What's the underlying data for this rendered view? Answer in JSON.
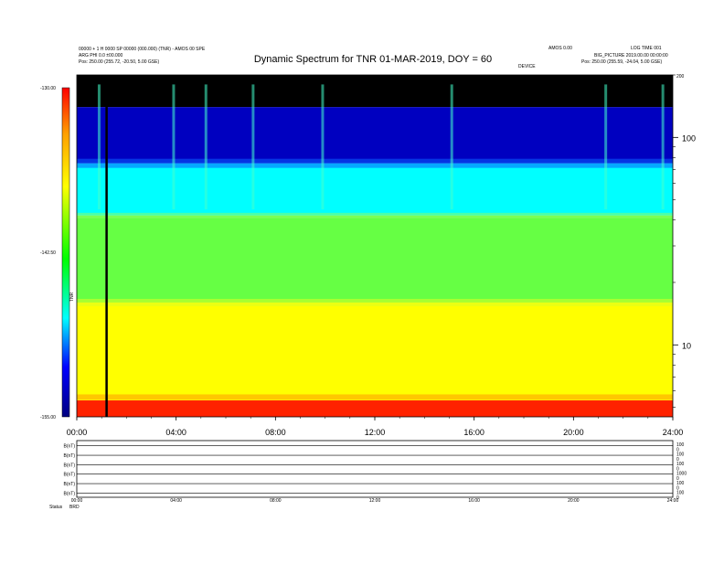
{
  "header": {
    "title": "Dynamic Spectrum for TNR 01-MAR-2019, DOY = 60",
    "left_line1": "00000 + 1 H 0000 SP 00000 (000.000) (TNR) - AMOS 00 SPE",
    "left_line2": "ARG PHI 0.0 ±00.000",
    "left_line3": "Pos:    250.00 (255.72, -20.50, 5.00 GSE)",
    "right_line1": "AMOS 0.00",
    "right_line2": "LOG TIME 001",
    "right_line3": "BIG_PICTURE 2019.00.00 00:00:00",
    "right_line4": "Pos:    250.00 (255.59, -24.04, 5.00 GSE)",
    "center_small": "DEVICE"
  },
  "colors": {
    "background": "#ffffff",
    "black_band": "#000000",
    "dark_blue": "#0000b0",
    "blue": "#0033ff",
    "cyan": "#00ffff",
    "green": "#44ff44",
    "yellow": "#ffff00",
    "red": "#ff0000"
  },
  "chart_data": [
    {
      "type": "heatmap",
      "title": "Dynamic Spectrum for TNR 01-MAR-2019, DOY = 60",
      "x_tick_labels": [
        "00:00",
        "04:00",
        "08:00",
        "12:00",
        "16:00",
        "20:00",
        "24:00"
      ],
      "x_ticks_hours": [
        0,
        4,
        8,
        12,
        16,
        20,
        24
      ],
      "xlim_hours": [
        0,
        24
      ],
      "y_scale": "log",
      "y_tick_labels": [
        "10",
        "100"
      ],
      "y_ticks": [
        10,
        100
      ],
      "y_top_label": "200",
      "ylim": [
        4.5,
        200
      ],
      "colorbar": {
        "label": "TNR",
        "tick_labels": [
          "-130.00",
          "-142.50",
          "-155.00"
        ],
        "range": [
          -155,
          -130
        ],
        "colormap": [
          "#000080",
          "#0000ff",
          "#00ffff",
          "#00ff00",
          "#ffff00",
          "#ff0000"
        ]
      },
      "vertical_marker_hour": 1.2,
      "bands": [
        {
          "name": "black band",
          "y_from": 200,
          "y_to": 140,
          "color": "#000000"
        },
        {
          "name": "dark blue",
          "y_from": 140,
          "y_to": 75,
          "color": "#0000c0"
        },
        {
          "name": "cyan",
          "y_from": 75,
          "y_to": 42,
          "color": "#00ffff"
        },
        {
          "name": "green",
          "y_from": 42,
          "y_to": 16,
          "color": "#66ff44"
        },
        {
          "name": "yellow",
          "y_from": 16,
          "y_to": 5.4,
          "color": "#ffff00"
        },
        {
          "name": "red",
          "y_from": 5.4,
          "y_to": 4.5,
          "color": "#ff2200"
        }
      ]
    },
    {
      "type": "line",
      "panel": "bottom strip",
      "row_labels": [
        "B(nT)",
        "B(nT)",
        "B(nT)",
        "B(nT)",
        "B(nT)",
        "B(nT)"
      ],
      "right_labels": [
        "100",
        "0",
        "100",
        "0",
        "100",
        "0",
        "1000",
        "0",
        "100",
        "0",
        "100",
        "0"
      ],
      "x_tick_labels": [
        "00:00",
        "04:00",
        "08:00",
        "12:00",
        "16:00",
        "20:00",
        "24:00"
      ],
      "footer_labels": [
        "Status",
        "BRD"
      ]
    }
  ]
}
